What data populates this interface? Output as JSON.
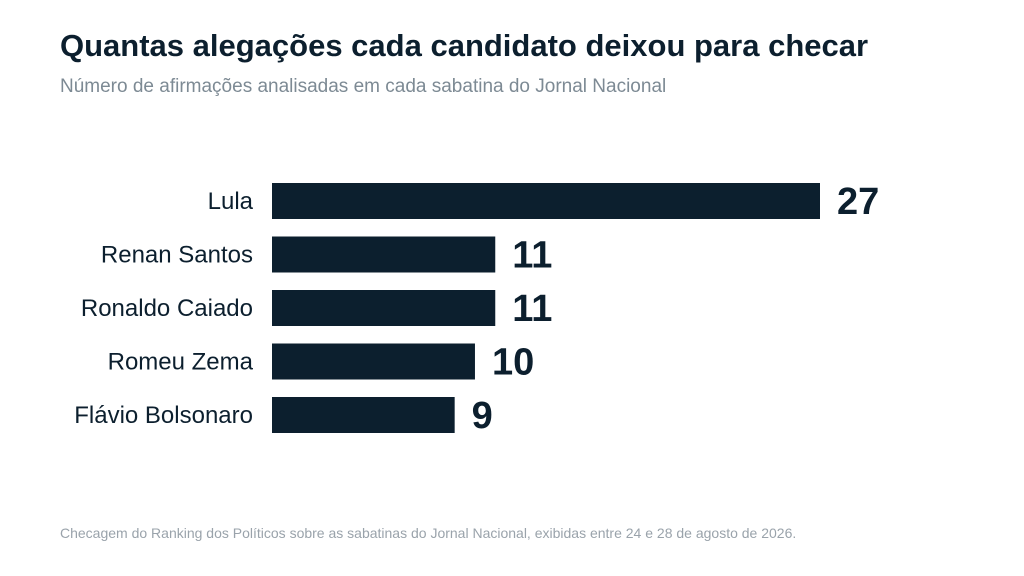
{
  "title": "Quantas alegações cada candidato deixou para checar",
  "subtitle": "Número de afirmações analisadas em cada sabatina do Jornal Nacional",
  "footer": "Checagem do Ranking dos Políticos sobre as sabatinas do Jornal Nacional, exibidas entre 24 e 28 de agosto de 2026.",
  "colors": {
    "bar": "#0c1f2e",
    "text": "#0c1f2e",
    "subtitle": "#7d8a94",
    "footer": "#9aa3ab"
  },
  "chart_data": {
    "type": "bar",
    "orientation": "horizontal",
    "title": "Quantas alegações cada candidato deixou para checar",
    "subtitle": "Número de afirmações analisadas em cada sabatina do Jornal Nacional",
    "categories": [
      "Lula",
      "Renan Santos",
      "Ronaldo Caiado",
      "Romeu Zema",
      "Flávio Bolsonaro"
    ],
    "values": [
      27,
      11,
      11,
      10,
      9
    ],
    "data_labels": [
      "27",
      "11",
      "11",
      "10",
      "9"
    ],
    "xlim": [
      0,
      27
    ],
    "grid": false,
    "axes_visible": false
  }
}
